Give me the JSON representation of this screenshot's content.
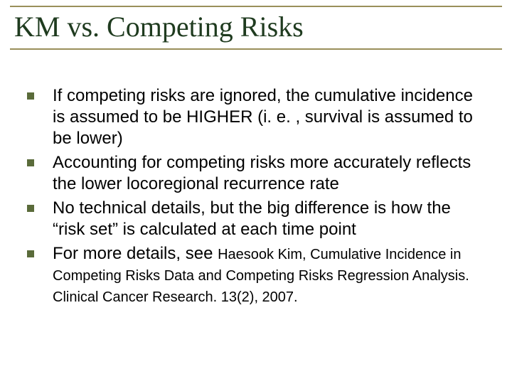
{
  "slide": {
    "title": "KM vs. Competing Risks",
    "title_color": "#1f3b1f",
    "title_fontsize": 40,
    "title_font": "Times New Roman",
    "rule_color": "#9a8f5a",
    "background_color": "#ffffff",
    "bullet_color": "#5a6b3a",
    "body_fontsize": 24,
    "citation_fontsize": 20,
    "bullets": [
      {
        "text": "If competing risks are ignored, the cumulative incidence is assumed to be HIGHER (i. e. , survival is assumed to be lower)"
      },
      {
        "text": "Accounting for competing risks more accurately reflects the lower locoregional recurrence rate"
      },
      {
        "text": "No technical details, but the big difference is how the “risk set” is calculated at each time point"
      },
      {
        "text": "For more details, see ",
        "citation": "Haesook Kim, Cumulative Incidence in Competing Risks Data and Competing Risks Regression Analysis. Clinical Cancer Research. 13(2), 2007."
      }
    ]
  }
}
